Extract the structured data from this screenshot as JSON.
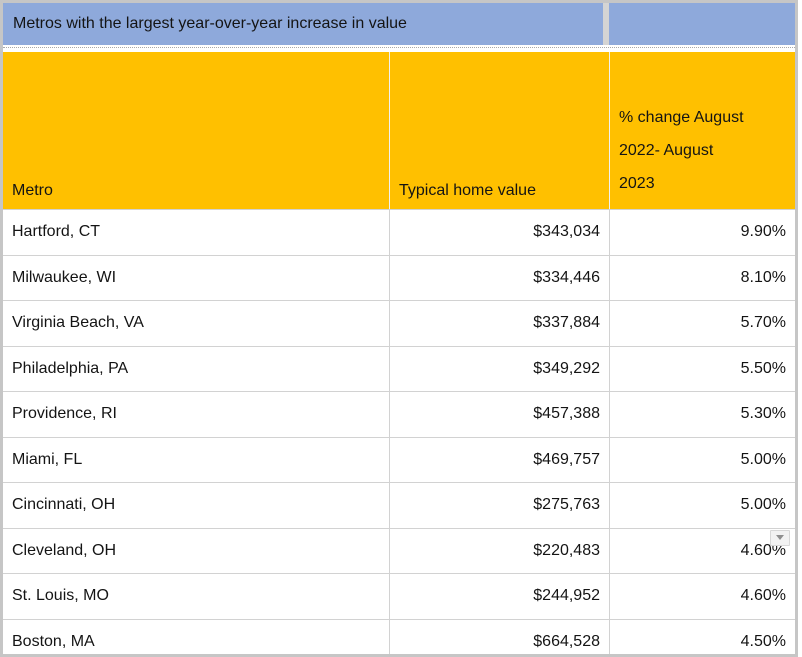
{
  "table": {
    "title": "Metros with the largest year-over-year increase in value",
    "columns": [
      "Metro",
      "Typical home value",
      "% change August 2022- August 2023"
    ],
    "rows": [
      {
        "metro": "Hartford, CT",
        "value": "$343,034",
        "change": "9.90%"
      },
      {
        "metro": "Milwaukee, WI",
        "value": "$334,446",
        "change": "8.10%"
      },
      {
        "metro": "Virginia Beach, VA",
        "value": "$337,884",
        "change": "5.70%"
      },
      {
        "metro": "Philadelphia, PA",
        "value": "$349,292",
        "change": "5.50%"
      },
      {
        "metro": "Providence, RI",
        "value": "$457,388",
        "change": "5.30%"
      },
      {
        "metro": "Miami, FL",
        "value": "$469,757",
        "change": "5.00%"
      },
      {
        "metro": "Cincinnati, OH",
        "value": "$275,763",
        "change": "5.00%"
      },
      {
        "metro": "Cleveland, OH",
        "value": "$220,483",
        "change": "4.60%"
      },
      {
        "metro": "St. Louis, MO",
        "value": "$244,952",
        "change": "4.60%"
      },
      {
        "metro": "Boston, MA",
        "value": "$664,528",
        "change": "4.50%"
      }
    ]
  },
  "icons": {
    "dropdown": "dropdown-arrow-icon"
  },
  "colors": {
    "title_blue": "#8EA9DB",
    "header_orange": "#FFC000",
    "grid_line": "#D2D2D2",
    "outer_border": "#C6C6C6",
    "text": "#141414"
  }
}
